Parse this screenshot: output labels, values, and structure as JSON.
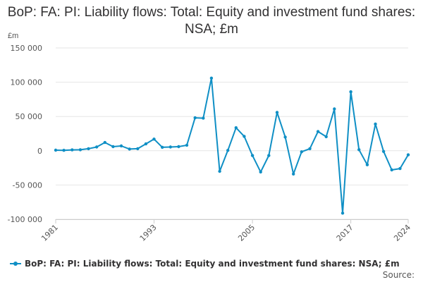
{
  "chart_data": {
    "type": "line",
    "title": "BoP: FA: PI: Liability flows: Total: Equity and investment fund shares: NSA; £m",
    "unit_label": "£m",
    "ylim": [
      -100000,
      150000
    ],
    "yticks": [
      -100000,
      -50000,
      0,
      50000,
      100000,
      150000
    ],
    "ytick_labels": [
      "-100 000",
      "-50 000",
      "0",
      "50 000",
      "100 000",
      "150 000"
    ],
    "xlim": [
      1981,
      2024
    ],
    "xticks": [
      1981,
      1993,
      2005,
      2017,
      2024
    ],
    "xtick_labels": [
      "1981",
      "1993",
      "2005",
      "2017",
      "2024"
    ],
    "grid": true,
    "legend_position": "bottom-left",
    "series": [
      {
        "name": "BoP: FA: PI: Liability flows: Total: Equity and investment fund shares: NSA; £m",
        "color": "#0f8fc5",
        "x": [
          1981,
          1982,
          1983,
          1984,
          1985,
          1986,
          1987,
          1988,
          1989,
          1990,
          1991,
          1992,
          1993,
          1994,
          1995,
          1996,
          1997,
          1998,
          1999,
          2000,
          2001,
          2002,
          2003,
          2004,
          2005,
          2006,
          2007,
          2008,
          2009,
          2010,
          2011,
          2012,
          2013,
          2014,
          2015,
          2016,
          2017,
          2018,
          2019,
          2020,
          2021,
          2022,
          2023,
          2024
        ],
        "y": [
          800,
          600,
          1200,
          1400,
          3000,
          5500,
          12000,
          6000,
          7000,
          2500,
          3000,
          10000,
          17000,
          5000,
          5500,
          6000,
          8000,
          48000,
          47500,
          106000,
          -30000,
          500,
          33500,
          21000,
          -7000,
          -31000,
          -7000,
          56000,
          20000,
          -34000,
          -1500,
          3000,
          28000,
          20500,
          61000,
          -91000,
          86000,
          1500,
          -20500,
          39000,
          -1000,
          -28000,
          -26000,
          -6000
        ]
      }
    ],
    "source_label": "Source:"
  }
}
